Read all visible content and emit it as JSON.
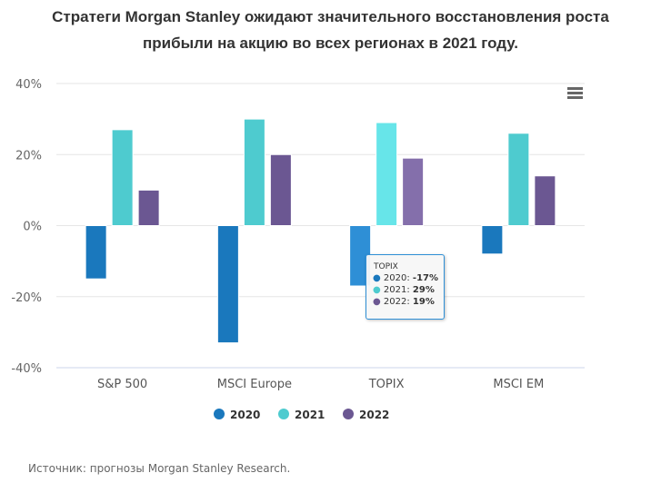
{
  "chart_data": {
    "type": "bar",
    "title": "Стратеги Morgan Stanley ожидают значительного восстановления роста прибыли на акцию во всех регионах в 2021 году.",
    "title_lines": [
      "Стратеги Morgan Stanley ожидают значительного восстановления роста",
      "прибыли на акцию во всех регионах в 2021 году."
    ],
    "categories": [
      "S&P 500",
      "MSCI Europe",
      "TOPIX",
      "MSCI EM"
    ],
    "series": [
      {
        "name": "2020",
        "color": "#1a78bd",
        "values": [
          -15,
          -33,
          -17,
          -8
        ]
      },
      {
        "name": "2021",
        "color": "#4ecbcf",
        "values": [
          27,
          30,
          29,
          26
        ]
      },
      {
        "name": "2022",
        "color": "#6b5792",
        "values": [
          10,
          20,
          19,
          14
        ]
      }
    ],
    "xlabel": "",
    "ylabel": "",
    "ylim": [
      -40,
      40
    ],
    "yticks": [
      40,
      20,
      0,
      -20,
      -40
    ],
    "ytick_labels": [
      "40%",
      "20%",
      "0%",
      "-20%",
      "-40%"
    ],
    "grid": true,
    "legend": "bottom-center",
    "highlighted_category": "TOPIX",
    "hover_colors": [
      "#2e8fd6",
      "#67e5e9",
      "#846fab"
    ]
  },
  "tooltip": {
    "title": "TOPIX",
    "rows": [
      {
        "label": "2020: ",
        "value": "-17%",
        "color": "#1a78bd"
      },
      {
        "label": "2021: ",
        "value": "29%",
        "color": "#4ecbcf"
      },
      {
        "label": "2022: ",
        "value": "19%",
        "color": "#6b5792"
      }
    ]
  },
  "menu": {
    "icon": "hamburger-menu-icon"
  },
  "source": "Источник: прогнозы Morgan Stanley Research."
}
